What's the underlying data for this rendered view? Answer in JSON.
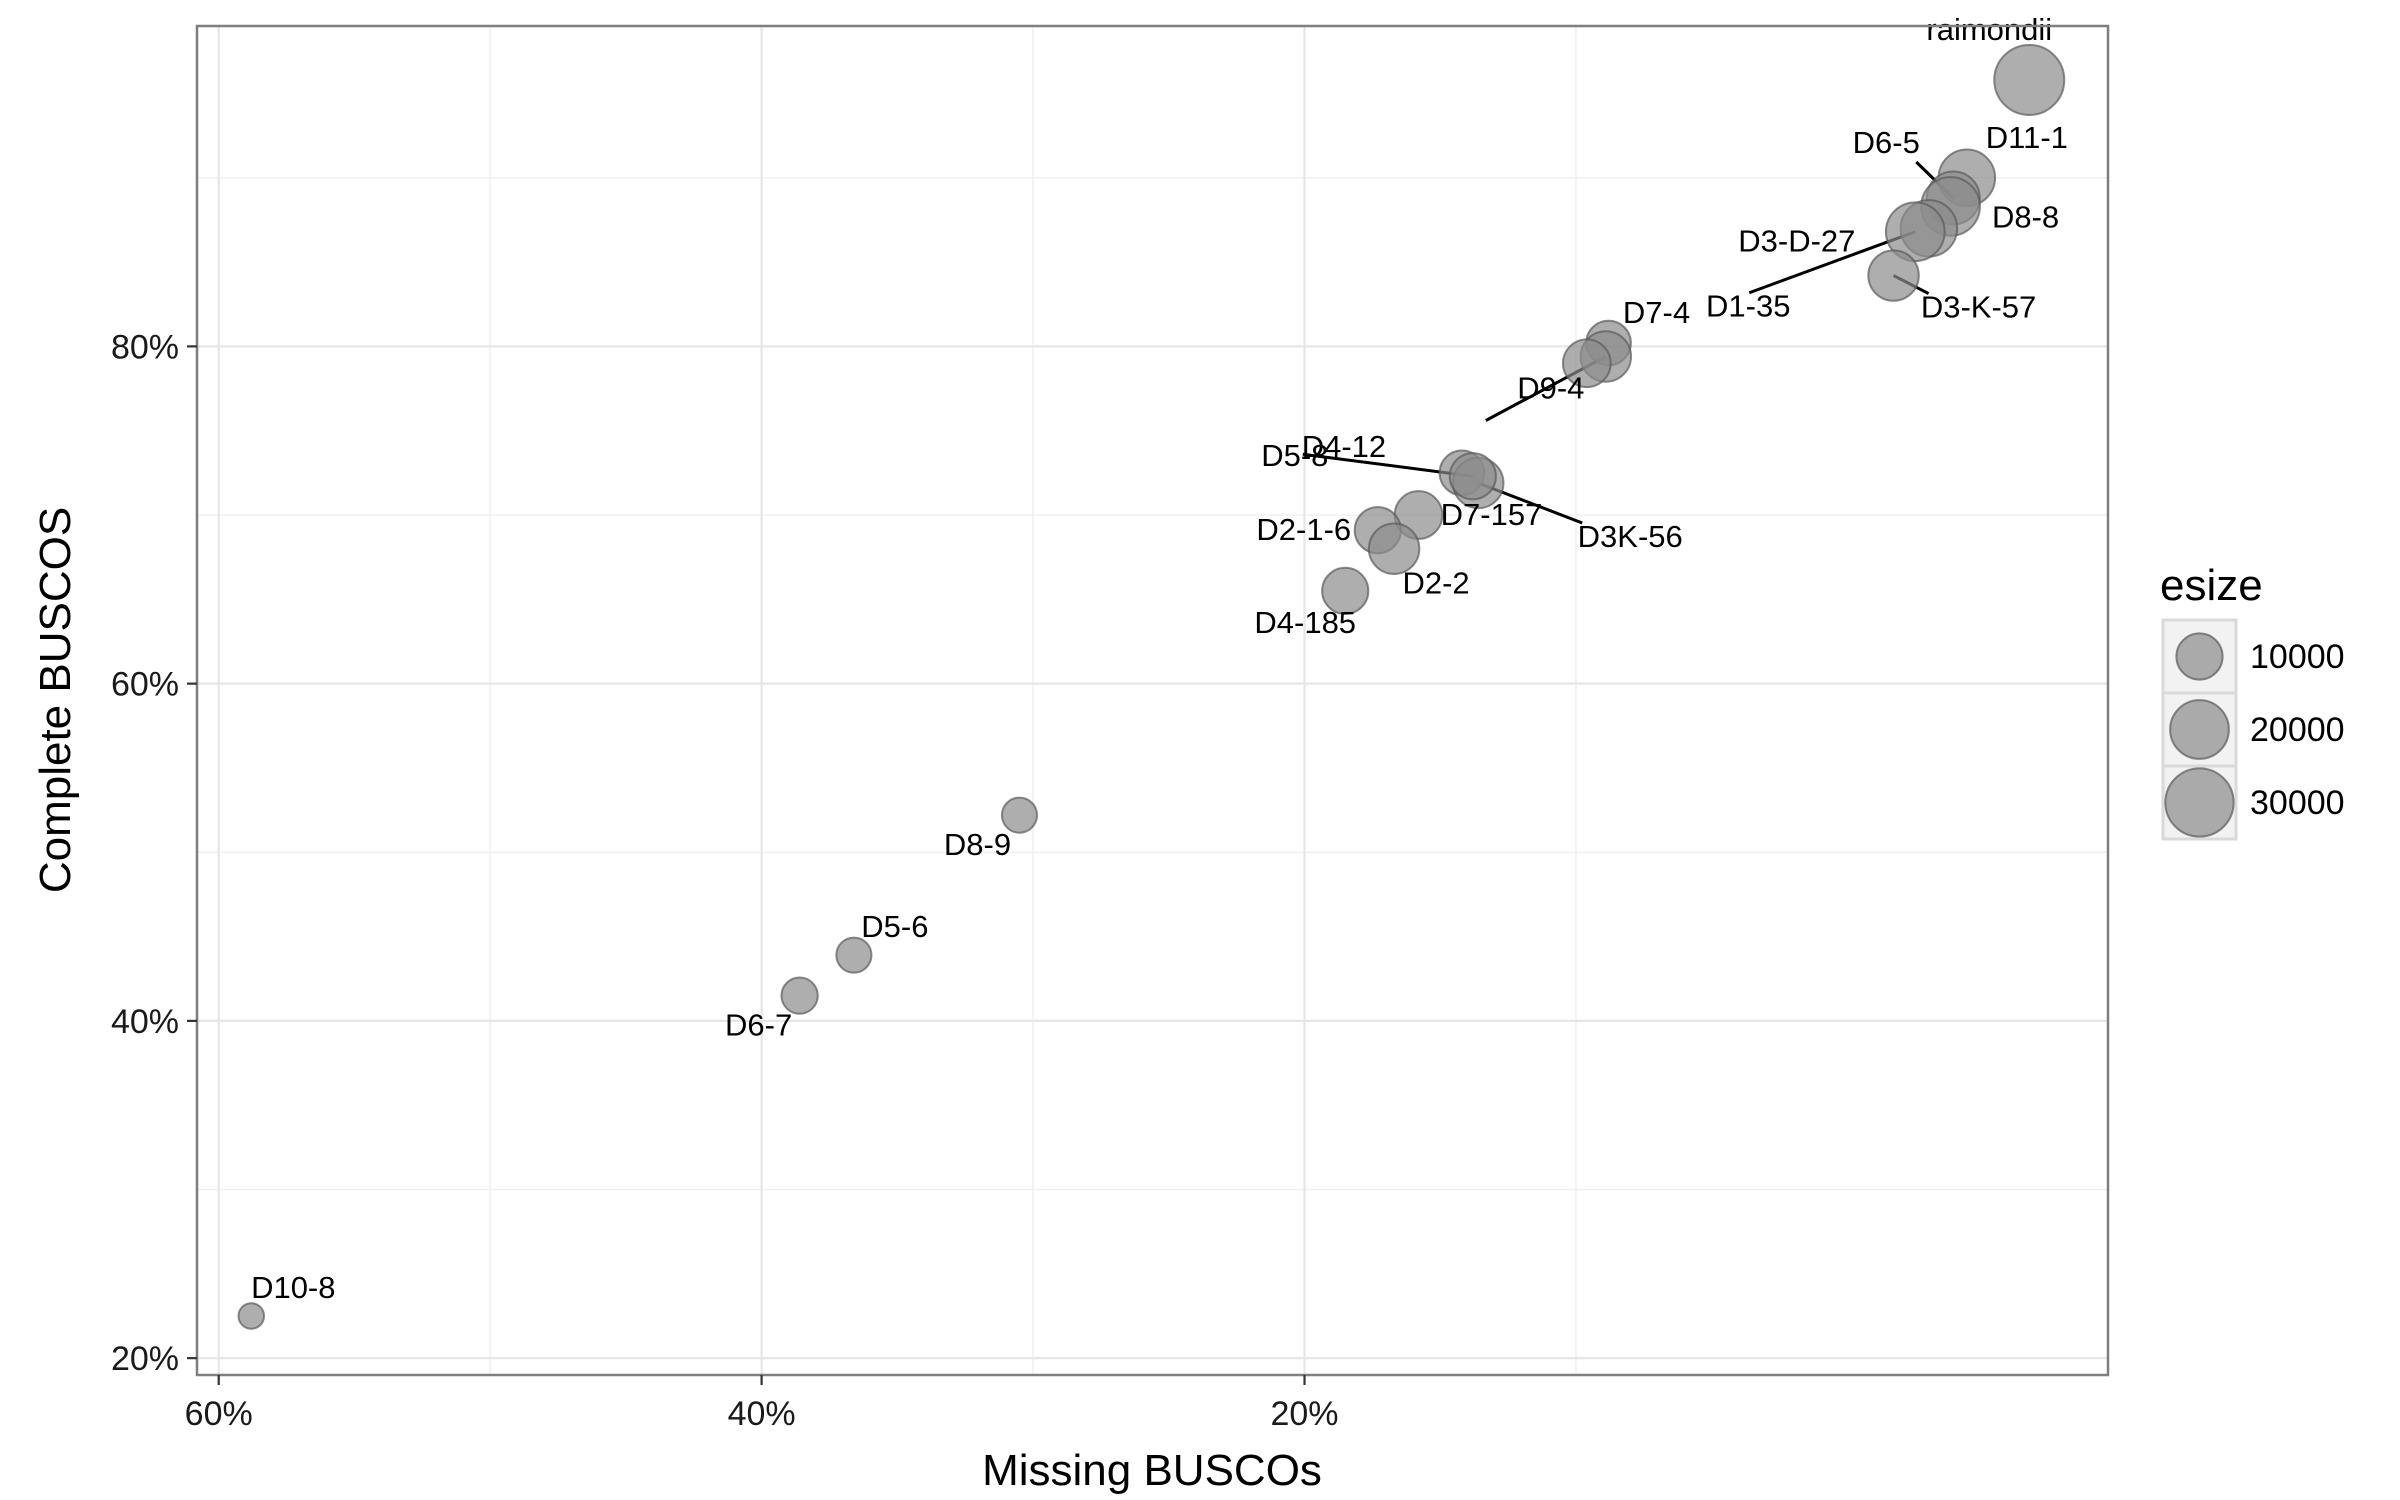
{
  "chart_data": {
    "type": "scatter",
    "xlabel": "Missing BUSCOs",
    "ylabel": "Complete BUSCOS",
    "x_reversed": true,
    "xlim": [
      60.8,
      -9.6
    ],
    "ylim": [
      19.0,
      99.0
    ],
    "x_ticks": [
      {
        "value": 60,
        "label": "60%"
      },
      {
        "value": 40,
        "label": "40%"
      },
      {
        "value": 20,
        "label": "20%"
      }
    ],
    "y_ticks": [
      {
        "value": 20,
        "label": "20%"
      },
      {
        "value": 40,
        "label": "40%"
      },
      {
        "value": 60,
        "label": "60%"
      },
      {
        "value": 80,
        "label": "80%"
      }
    ],
    "grid": true,
    "size_legend": {
      "title": "esize",
      "position": "right",
      "entries": [
        {
          "value": 10000,
          "label": "10000"
        },
        {
          "value": 20000,
          "label": "20000"
        },
        {
          "value": 30000,
          "label": "30000"
        }
      ]
    },
    "points": [
      {
        "label": "raimondii",
        "missing": -6.7,
        "complete": 95.8,
        "esize": 32000
      },
      {
        "label": "D11-1",
        "missing": -4.4,
        "complete": 90.0,
        "esize": 18000
      },
      {
        "label": "D6-5",
        "missing": -3.9,
        "complete": 88.8,
        "esize": 15000
      },
      {
        "label": "D8-8",
        "missing": -3.8,
        "complete": 88.3,
        "esize": 20000
      },
      {
        "label": "D3-D-27",
        "missing": -3.0,
        "complete": 87.0,
        "esize": 18000
      },
      {
        "label": "D1-35",
        "missing": -2.5,
        "complete": 86.8,
        "esize": 20000
      },
      {
        "label": "D3-K-57",
        "missing": -1.7,
        "complete": 84.2,
        "esize": 13000
      },
      {
        "label": "D7-4",
        "missing": 8.8,
        "complete": 80.2,
        "esize": 9000
      },
      {
        "label": "D9-4",
        "missing": 8.9,
        "complete": 79.4,
        "esize": 13000
      },
      {
        "label": "",
        "missing": 9.6,
        "complete": 79.0,
        "esize": 11000
      },
      {
        "label": "D4-12",
        "missing": 14.2,
        "complete": 72.5,
        "esize": 9000
      },
      {
        "label": "D3K-56",
        "missing": 13.6,
        "complete": 71.9,
        "esize": 13000
      },
      {
        "label": "D5-8",
        "missing": 13.8,
        "complete": 72.3,
        "esize": 10000
      },
      {
        "label": "D7-157",
        "missing": 15.8,
        "complete": 70.0,
        "esize": 11000
      },
      {
        "label": "D2-1-6",
        "missing": 17.3,
        "complete": 69.1,
        "esize": 10000
      },
      {
        "label": "D2-2",
        "missing": 16.7,
        "complete": 68.0,
        "esize": 13000
      },
      {
        "label": "D4-185",
        "missing": 18.5,
        "complete": 65.5,
        "esize": 10000
      },
      {
        "label": "D8-9",
        "missing": 30.5,
        "complete": 52.2,
        "esize": 4000
      },
      {
        "label": "D5-6",
        "missing": 36.6,
        "complete": 43.9,
        "esize": 4000
      },
      {
        "label": "D6-7",
        "missing": 38.6,
        "complete": 41.5,
        "esize": 4500
      },
      {
        "label": "D10-8",
        "missing": 58.8,
        "complete": 22.5,
        "esize": 1000
      }
    ]
  }
}
